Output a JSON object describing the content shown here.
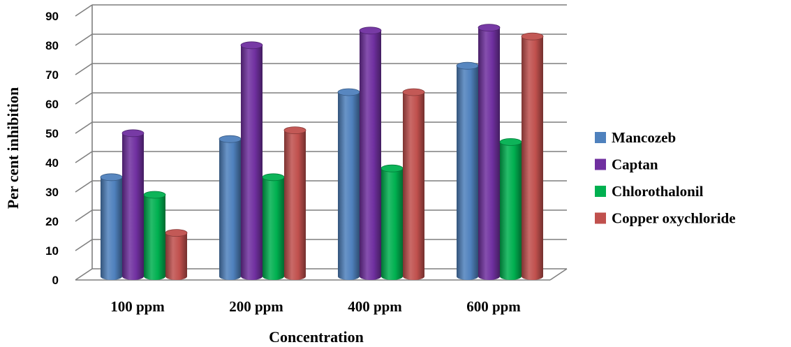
{
  "chart_data": {
    "type": "bar",
    "style": "3d-cylinder",
    "categories": [
      "100 ppm",
      "200 ppm",
      "400 ppm",
      "600 ppm"
    ],
    "series": [
      {
        "name": "Mancozeb",
        "color": "#4f81bd",
        "values": [
          36,
          49,
          65,
          74
        ]
      },
      {
        "name": "Captan",
        "color": "#7030a0",
        "values": [
          51,
          81,
          86,
          87
        ]
      },
      {
        "name": "Chlorothalonil",
        "color": "#00b050",
        "values": [
          30,
          36,
          39,
          48
        ]
      },
      {
        "name": "Copper oxychloride",
        "color": "#c0504d",
        "values": [
          17,
          52,
          65,
          84
        ]
      }
    ],
    "xlabel": "Concentration",
    "ylabel": "Per cent inhibition",
    "ylim": [
      0,
      90
    ],
    "yticks": [
      "0",
      "10",
      "20",
      "30",
      "40",
      "50",
      "60",
      "70",
      "80",
      "90"
    ],
    "grid": true,
    "legend_position": "right"
  }
}
